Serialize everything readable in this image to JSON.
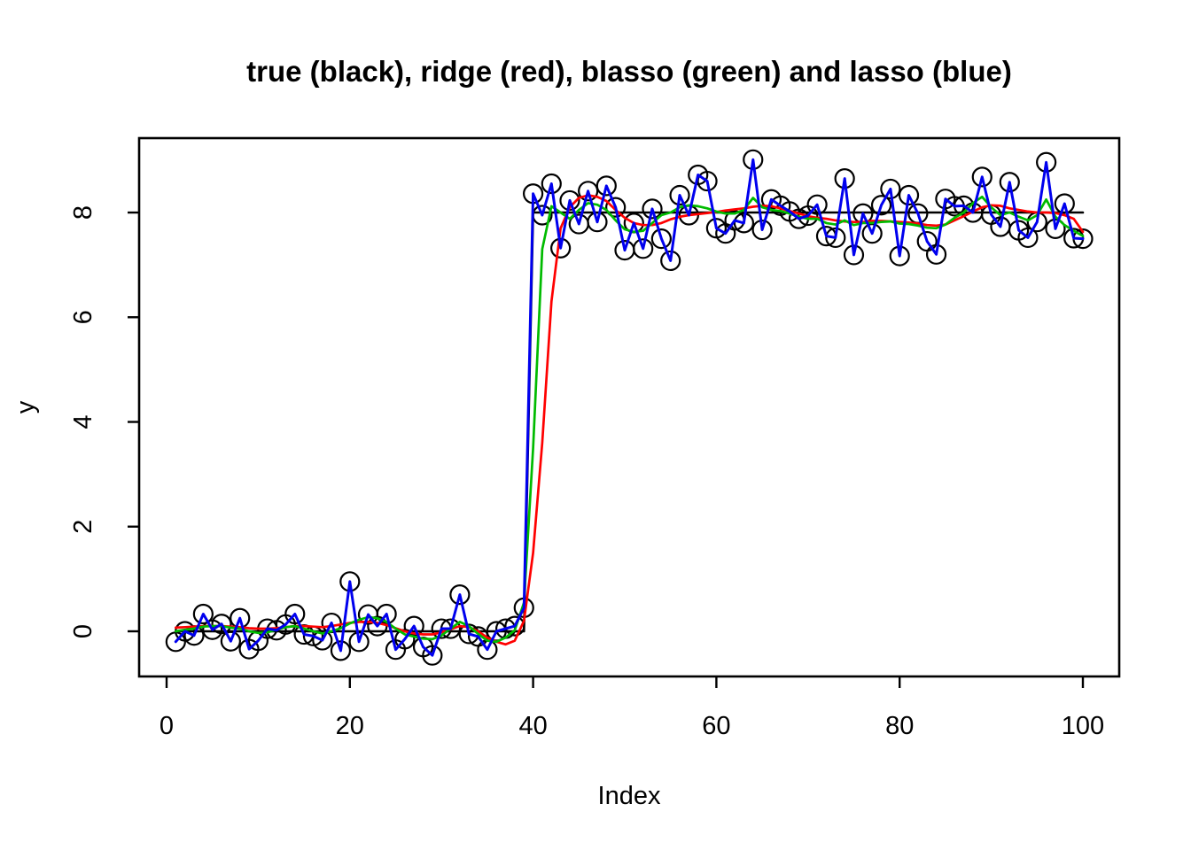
{
  "chart_data": {
    "type": "line",
    "title": "true (black), ridge (red), blasso (green) and lasso (blue)",
    "xlabel": "Index",
    "ylabel": "y",
    "x_description": "Index 1..100",
    "xlim": [
      -3,
      104
    ],
    "ylim": [
      -0.86,
      9.42
    ],
    "x_ticks": [
      0,
      20,
      40,
      60,
      80,
      100
    ],
    "x_tick_labels": [
      "0",
      "20",
      "40",
      "60",
      "80",
      "100"
    ],
    "y_ticks": [
      0,
      2,
      4,
      6,
      8
    ],
    "y_tick_labels": [
      "0",
      "2",
      "4",
      "6",
      "8"
    ],
    "grid": false,
    "legend_position": "none (encoded in title)",
    "points_style": {
      "marker": "open-circle",
      "color": "#000000"
    },
    "colors": {
      "true": "#000000",
      "ridge": "#FF0000",
      "blasso": "#00BB00",
      "lasso": "#0000EE"
    },
    "observed_points": [
      -0.2,
      0.0,
      -0.08,
      0.33,
      0.03,
      0.14,
      -0.19,
      0.25,
      -0.34,
      -0.18,
      0.05,
      0.02,
      0.13,
      0.33,
      -0.06,
      -0.09,
      -0.17,
      0.16,
      -0.37,
      0.95,
      -0.2,
      0.32,
      0.1,
      0.33,
      -0.35,
      -0.15,
      0.1,
      -0.3,
      -0.46,
      0.05,
      0.05,
      0.7,
      -0.05,
      -0.1,
      -0.35,
      0.0,
      0.05,
      0.1,
      0.45,
      8.36,
      7.95,
      8.55,
      7.32,
      8.23,
      7.78,
      8.41,
      7.82,
      8.51,
      8.1,
      7.28,
      7.8,
      7.31,
      8.07,
      7.5,
      7.08,
      8.33,
      7.95,
      8.72,
      8.6,
      7.7,
      7.6,
      7.85,
      7.8,
      9.01,
      7.67,
      8.25,
      8.13,
      8.02,
      7.88,
      7.94,
      8.15,
      7.55,
      7.52,
      8.65,
      7.19,
      7.98,
      7.6,
      8.14,
      8.45,
      7.17,
      8.33,
      7.98,
      7.45,
      7.2,
      8.26,
      8.12,
      8.13,
      8.0,
      8.68,
      7.96,
      7.73,
      8.58,
      7.66,
      7.52,
      7.82,
      8.96,
      7.69,
      8.17,
      7.51,
      7.5
    ],
    "series": [
      {
        "name": "true",
        "color": "#000000",
        "style": "step",
        "step": {
          "value_before": 0,
          "value_after": 8,
          "last_low_index": 39,
          "first_high_index": 40
        }
      },
      {
        "name": "ridge",
        "color": "#FF0000",
        "style": "smooth",
        "values": [
          0.07,
          0.08,
          0.09,
          0.1,
          0.1,
          0.1,
          0.09,
          0.08,
          0.06,
          0.05,
          0.05,
          0.06,
          0.08,
          0.1,
          0.1,
          0.09,
          0.08,
          0.1,
          0.13,
          0.16,
          0.18,
          0.18,
          0.16,
          0.12,
          0.06,
          0.0,
          -0.04,
          -0.06,
          -0.06,
          -0.02,
          0.04,
          0.1,
          0.08,
          0.0,
          -0.12,
          -0.2,
          -0.25,
          -0.18,
          0.2,
          1.5,
          3.6,
          6.3,
          7.7,
          8.1,
          8.28,
          8.33,
          8.3,
          8.22,
          8.05,
          7.9,
          7.8,
          7.76,
          7.76,
          7.8,
          7.87,
          7.92,
          7.95,
          7.97,
          7.99,
          8.01,
          8.04,
          8.06,
          8.08,
          8.11,
          8.13,
          8.12,
          8.08,
          8.03,
          7.98,
          7.93,
          7.9,
          7.88,
          7.85,
          7.83,
          7.82,
          7.82,
          7.84,
          7.84,
          7.83,
          7.82,
          7.81,
          7.79,
          7.76,
          7.75,
          7.77,
          7.85,
          7.93,
          8.02,
          8.1,
          8.14,
          8.13,
          8.08,
          8.05,
          8.02,
          8.0,
          8.0,
          7.99,
          7.95,
          7.88,
          7.63
        ]
      },
      {
        "name": "blasso",
        "color": "#00BB00",
        "style": "smooth",
        "values": [
          0.0,
          0.03,
          0.05,
          0.09,
          0.1,
          0.1,
          0.07,
          0.05,
          0.0,
          -0.03,
          -0.02,
          0.03,
          0.08,
          0.1,
          0.05,
          0.0,
          -0.04,
          0.0,
          0.06,
          0.15,
          0.22,
          0.27,
          0.25,
          0.18,
          0.05,
          -0.06,
          -0.1,
          -0.14,
          -0.15,
          -0.08,
          0.05,
          0.18,
          0.1,
          -0.05,
          -0.18,
          -0.2,
          -0.12,
          0.02,
          0.55,
          3.5,
          7.3,
          8.12,
          8.0,
          7.88,
          8.05,
          8.18,
          8.15,
          8.05,
          7.85,
          7.68,
          7.63,
          7.65,
          7.8,
          7.95,
          8.0,
          8.1,
          8.14,
          8.12,
          8.08,
          8.02,
          7.98,
          7.98,
          8.05,
          8.28,
          8.1,
          8.05,
          8.03,
          7.98,
          7.92,
          7.88,
          7.88,
          7.8,
          7.77,
          7.85,
          7.76,
          7.8,
          7.8,
          7.82,
          7.83,
          7.79,
          7.78,
          7.75,
          7.71,
          7.7,
          7.77,
          7.9,
          8.0,
          8.18,
          8.3,
          8.1,
          7.95,
          8.0,
          7.92,
          7.85,
          7.95,
          8.25,
          7.92,
          7.76,
          7.65,
          7.55
        ]
      },
      {
        "name": "lasso",
        "color": "#0000EE",
        "style": "interpolating",
        "values_from": "observed_points"
      }
    ]
  }
}
